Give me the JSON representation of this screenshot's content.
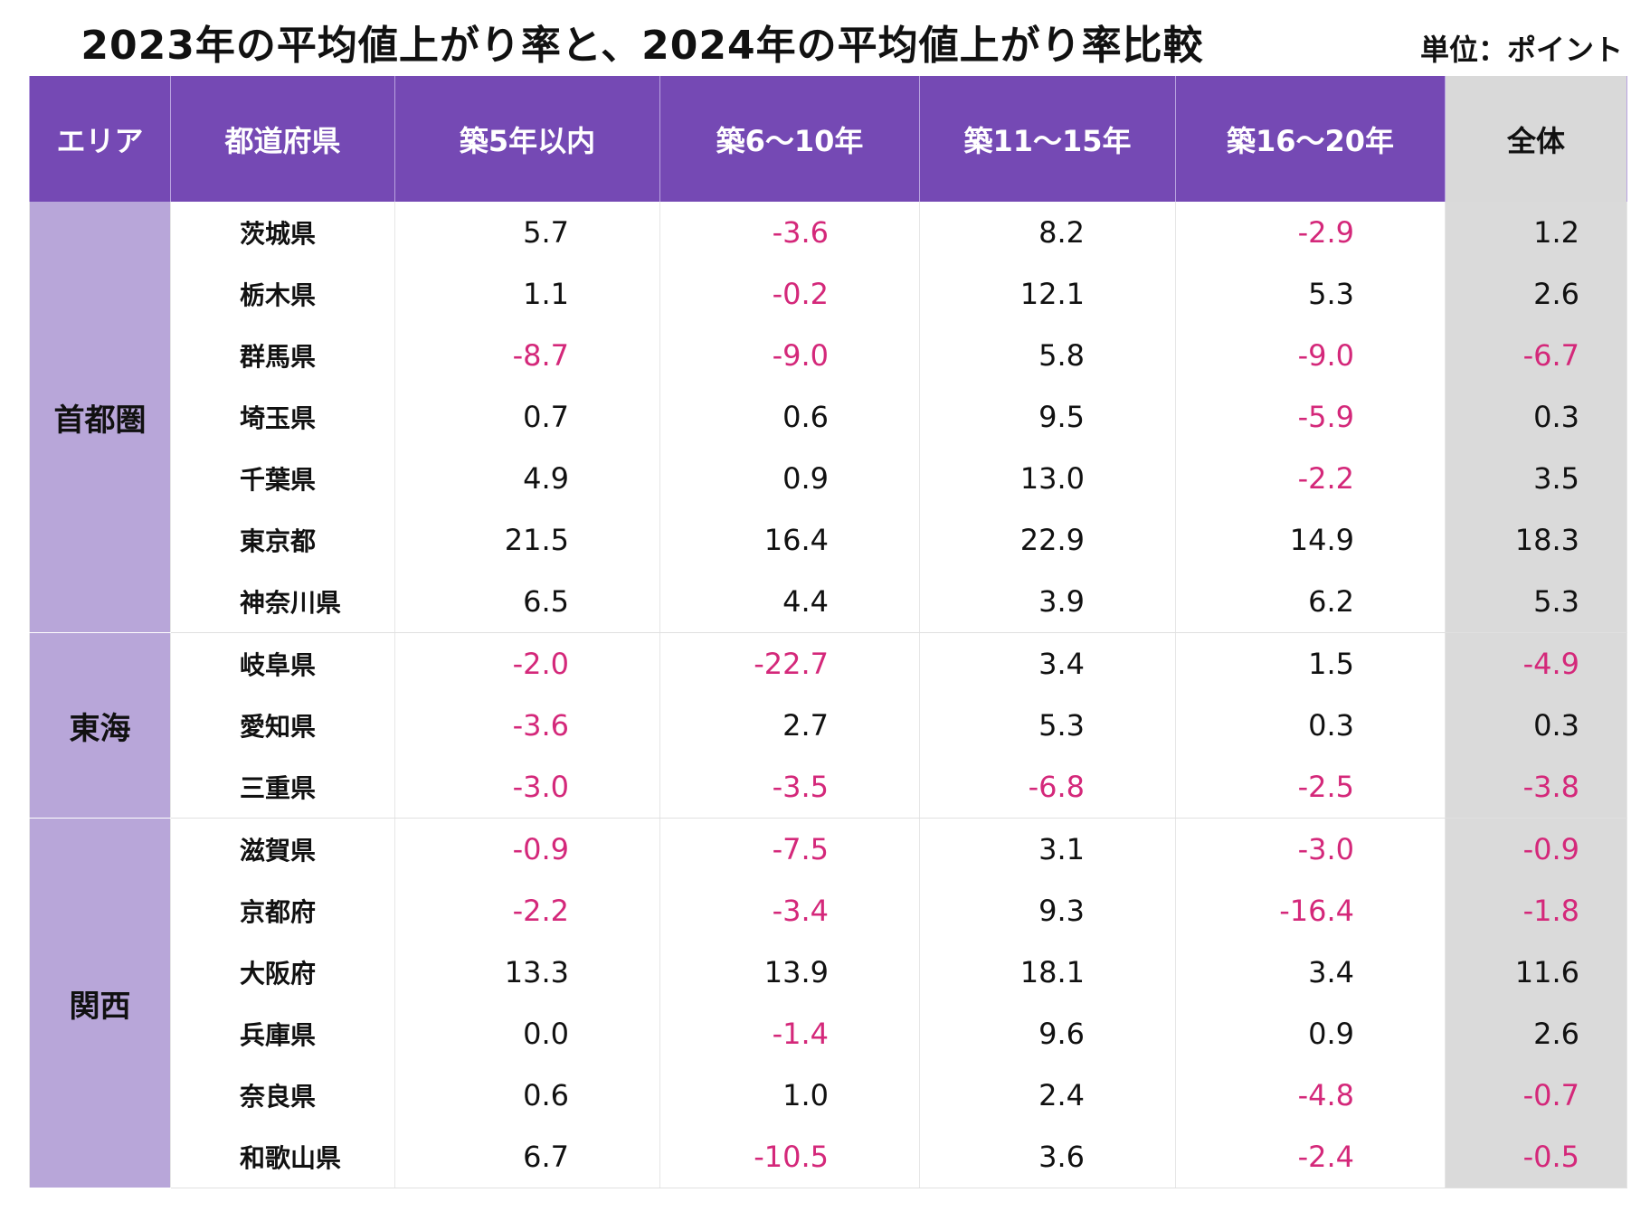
{
  "title": "2023年の平均値上がり率と、2024年の平均値上がり率比較",
  "unit": "単位：ポイント",
  "colors": {
    "header": "#7549b4",
    "area": "#b8a6d9",
    "total": "#dadada",
    "negative": "#d4287a"
  },
  "chart_data": {
    "type": "table",
    "columns": [
      "エリア",
      "都道府県",
      "築5年以内",
      "築6〜10年",
      "築11〜15年",
      "築16〜20年",
      "全体"
    ],
    "groups": [
      {
        "area": "首都圏",
        "rows": [
          {
            "pref": "茨城県",
            "values": [
              "5.7",
              "-3.6",
              "8.2",
              "-2.9",
              "1.2"
            ]
          },
          {
            "pref": "栃木県",
            "values": [
              "1.1",
              "-0.2",
              "12.1",
              "5.3",
              "2.6"
            ]
          },
          {
            "pref": "群馬県",
            "values": [
              "-8.7",
              "-9.0",
              "5.8",
              "-9.0",
              "-6.7"
            ]
          },
          {
            "pref": "埼玉県",
            "values": [
              "0.7",
              "0.6",
              "9.5",
              "-5.9",
              "0.3"
            ]
          },
          {
            "pref": "千葉県",
            "values": [
              "4.9",
              "0.9",
              "13.0",
              "-2.2",
              "3.5"
            ]
          },
          {
            "pref": "東京都",
            "values": [
              "21.5",
              "16.4",
              "22.9",
              "14.9",
              "18.3"
            ]
          },
          {
            "pref": "神奈川県",
            "values": [
              "6.5",
              "4.4",
              "3.9",
              "6.2",
              "5.3"
            ]
          }
        ]
      },
      {
        "area": "東海",
        "rows": [
          {
            "pref": "岐阜県",
            "values": [
              "-2.0",
              "-22.7",
              "3.4",
              "1.5",
              "-4.9"
            ]
          },
          {
            "pref": "愛知県",
            "values": [
              "-3.6",
              "2.7",
              "5.3",
              "0.3",
              "0.3"
            ]
          },
          {
            "pref": "三重県",
            "values": [
              "-3.0",
              "-3.5",
              "-6.8",
              "-2.5",
              "-3.8"
            ]
          }
        ]
      },
      {
        "area": "関西",
        "rows": [
          {
            "pref": "滋賀県",
            "values": [
              "-0.9",
              "-7.5",
              "3.1",
              "-3.0",
              "-0.9"
            ]
          },
          {
            "pref": "京都府",
            "values": [
              "-2.2",
              "-3.4",
              "9.3",
              "-16.4",
              "-1.8"
            ]
          },
          {
            "pref": "大阪府",
            "values": [
              "13.3",
              "13.9",
              "18.1",
              "3.4",
              "11.6"
            ]
          },
          {
            "pref": "兵庫県",
            "values": [
              "0.0",
              "-1.4",
              "9.6",
              "0.9",
              "2.6"
            ]
          },
          {
            "pref": "奈良県",
            "values": [
              "0.6",
              "1.0",
              "2.4",
              "-4.8",
              "-0.7"
            ]
          },
          {
            "pref": "和歌山県",
            "values": [
              "6.7",
              "-10.5",
              "3.6",
              "-2.4",
              "-0.5"
            ]
          }
        ]
      }
    ]
  }
}
